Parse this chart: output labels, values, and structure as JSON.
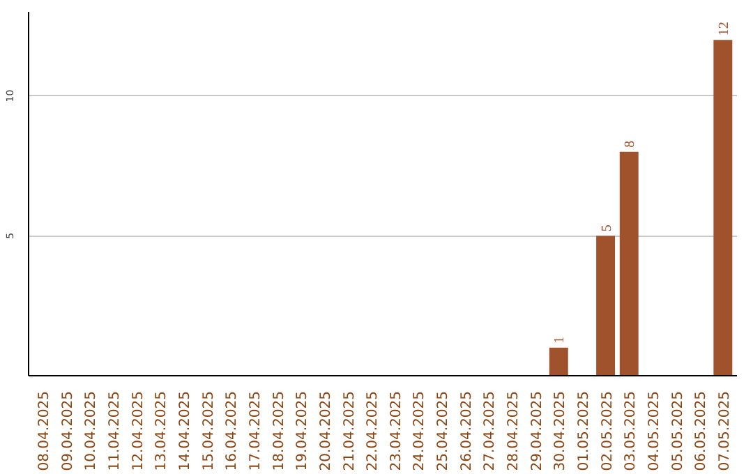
{
  "chart_data": {
    "type": "bar",
    "categories": [
      "08.04.2025",
      "09.04.2025",
      "10.04.2025",
      "11.04.2025",
      "12.04.2025",
      "13.04.2025",
      "14.04.2025",
      "15.04.2025",
      "16.04.2025",
      "17.04.2025",
      "18.04.2025",
      "19.04.2025",
      "20.04.2025",
      "21.04.2025",
      "22.04.2025",
      "23.04.2025",
      "24.04.2025",
      "25.04.2025",
      "26.04.2025",
      "27.04.2025",
      "28.04.2025",
      "29.04.2025",
      "30.04.2025",
      "01.05.2025",
      "02.05.2025",
      "03.05.2025",
      "04.05.2025",
      "05.05.2025",
      "06.05.2025",
      "07.05.2025"
    ],
    "values": [
      0,
      0,
      0,
      0,
      0,
      0,
      0,
      0,
      0,
      0,
      0,
      0,
      0,
      0,
      0,
      0,
      0,
      0,
      0,
      0,
      0,
      0,
      1,
      0,
      5,
      8,
      0,
      0,
      0,
      12
    ],
    "value_labels": [
      null,
      null,
      null,
      null,
      null,
      null,
      null,
      null,
      null,
      null,
      null,
      null,
      null,
      null,
      null,
      null,
      null,
      null,
      null,
      null,
      null,
      null,
      "1",
      null,
      "5",
      "8",
      null,
      null,
      null,
      "12"
    ],
    "color": "#a0522d",
    "ylim": [
      0,
      13
    ],
    "yticks": [
      5,
      10
    ],
    "grid": "y"
  }
}
